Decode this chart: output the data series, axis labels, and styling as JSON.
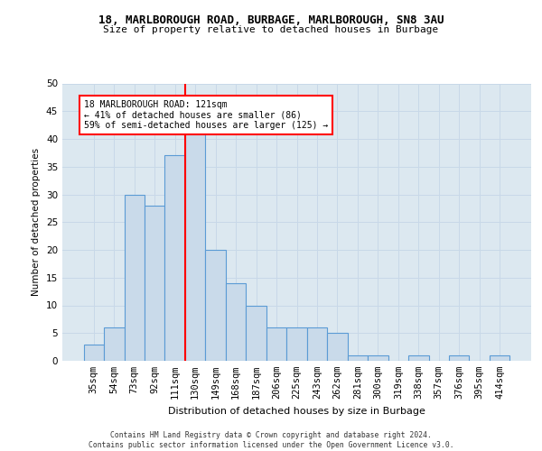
{
  "title_line1": "18, MARLBOROUGH ROAD, BURBAGE, MARLBOROUGH, SN8 3AU",
  "title_line2": "Size of property relative to detached houses in Burbage",
  "xlabel": "Distribution of detached houses by size in Burbage",
  "ylabel": "Number of detached properties",
  "bar_labels": [
    "35sqm",
    "54sqm",
    "73sqm",
    "92sqm",
    "111sqm",
    "130sqm",
    "149sqm",
    "168sqm",
    "187sqm",
    "206sqm",
    "225sqm",
    "243sqm",
    "262sqm",
    "281sqm",
    "300sqm",
    "319sqm",
    "338sqm",
    "357sqm",
    "376sqm",
    "395sqm",
    "414sqm"
  ],
  "bar_values": [
    3,
    6,
    30,
    28,
    37,
    43,
    20,
    14,
    10,
    6,
    6,
    6,
    5,
    1,
    1,
    0,
    1,
    0,
    1,
    0,
    1
  ],
  "bar_color": "#c9daea",
  "bar_edge_color": "#5b9bd5",
  "vline_x": 4.5,
  "vline_color": "red",
  "annotation_text": "18 MARLBOROUGH ROAD: 121sqm\n← 41% of detached houses are smaller (86)\n59% of semi-detached houses are larger (125) →",
  "annotation_box_color": "white",
  "annotation_box_edge": "red",
  "ylim": [
    0,
    50
  ],
  "yticks": [
    0,
    5,
    10,
    15,
    20,
    25,
    30,
    35,
    40,
    45,
    50
  ],
  "grid_color": "#c8d8e8",
  "bg_color": "#dce8f0",
  "footer_line1": "Contains HM Land Registry data © Crown copyright and database right 2024.",
  "footer_line2": "Contains public sector information licensed under the Open Government Licence v3.0."
}
